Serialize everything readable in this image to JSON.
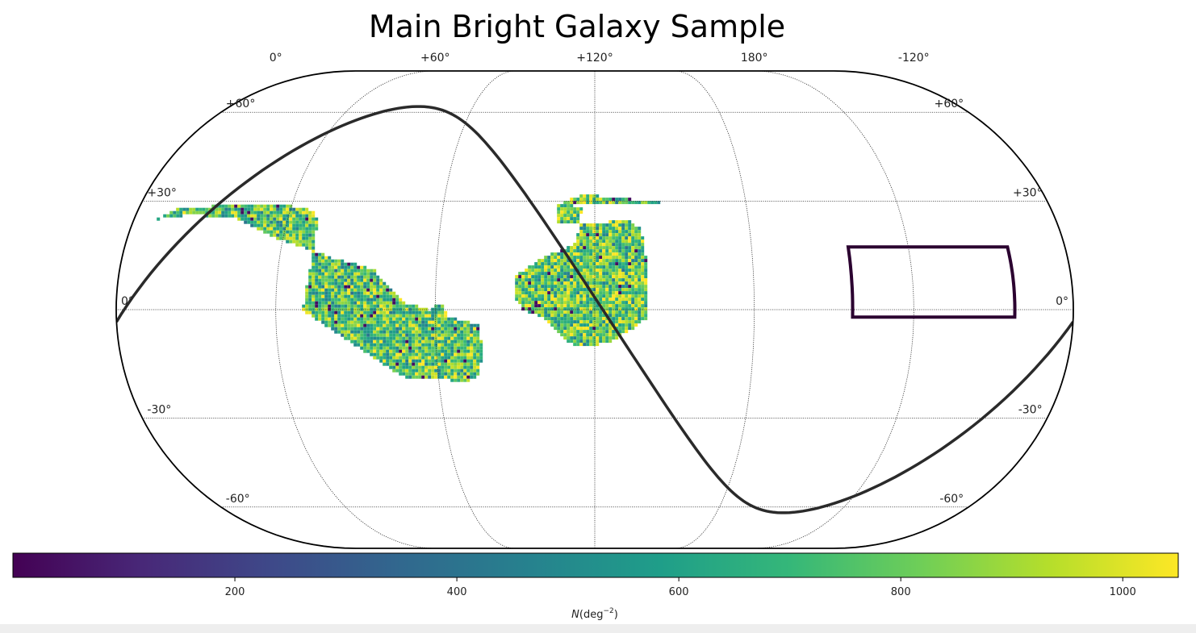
{
  "chart_data": {
    "type": "heatmap",
    "projection": "eckert-iv",
    "title": "Main Bright Galaxy Sample",
    "ra_axis": {
      "ticks": [
        {
          "ra": 120,
          "label": "0°"
        },
        {
          "ra": 60,
          "label": "+60°"
        },
        {
          "ra": 0,
          "label": "+120°"
        },
        {
          "ra": -60,
          "label": "180°"
        },
        {
          "ra": -120,
          "label": "-120°"
        }
      ]
    },
    "dec_axis": {
      "ticks": [
        {
          "dec": 60,
          "label": "+60°"
        },
        {
          "dec": 30,
          "label": "+30°"
        },
        {
          "dec": 0,
          "label": "0°"
        },
        {
          "dec": -30,
          "label": "-30°"
        },
        {
          "dec": -60,
          "label": "-60°"
        }
      ]
    },
    "grid": true,
    "colormap": "viridis",
    "colormap_stops": [
      "#440154",
      "#482878",
      "#3e4989",
      "#31688e",
      "#26828e",
      "#1f9e89",
      "#35b779",
      "#6ece58",
      "#b5de2b",
      "#fde725"
    ],
    "colorbar": {
      "range": [
        0,
        1050
      ],
      "ticks": [
        200,
        400,
        600,
        800,
        1000
      ],
      "label": "N(deg⁻²)",
      "label_var": "N",
      "label_unit": "(deg",
      "label_exp": "−2",
      "label_close": ")"
    },
    "footprints": [
      {
        "name": "",
        "outline": [
          [
            -61,
            27
          ],
          [
            -35,
            29
          ],
          [
            -7,
            29
          ],
          [
            15,
            29
          ],
          [
            15,
            24
          ],
          [
            -5,
            24
          ],
          [
            -12,
            25
          ],
          [
            -18,
            22
          ],
          [
            -20,
            12
          ],
          [
            -20,
            -2
          ],
          [
            -15,
            -5
          ],
          [
            -5,
            -9
          ],
          [
            5,
            -10
          ],
          [
            10,
            -9
          ],
          [
            15,
            -5
          ],
          [
            20,
            -2
          ],
          [
            27,
            0
          ],
          [
            30,
            3
          ],
          [
            30,
            9
          ],
          [
            20,
            14
          ],
          [
            7,
            18
          ],
          [
            5,
            28
          ],
          [
            8,
            28
          ],
          [
            8,
            29
          ],
          [
            15,
            29
          ],
          [
            5,
            32
          ]
        ],
        "density_mean": 780
      },
      {
        "name": "",
        "outline": [
          [
            174,
            23
          ],
          [
            165,
            28
          ],
          [
            140,
            29
          ],
          [
            125,
            29
          ],
          [
            115,
            28
          ],
          [
            110,
            27
          ],
          [
            108,
            24
          ],
          [
            108,
            10
          ],
          [
            110,
            0
          ],
          [
            100,
            -5
          ],
          [
            78,
            -16
          ],
          [
            72,
            -19
          ],
          [
            58,
            -19
          ],
          [
            50,
            -20
          ],
          [
            45,
            -18
          ],
          [
            42,
            -12
          ],
          [
            44,
            -4
          ],
          [
            55,
            -2
          ],
          [
            58,
            2
          ],
          [
            62,
            0
          ],
          [
            72,
            2
          ],
          [
            76,
            5
          ],
          [
            84,
            11
          ],
          [
            100,
            14
          ],
          [
            108,
            16
          ],
          [
            125,
            20
          ],
          [
            140,
            25
          ],
          [
            158,
            26
          ],
          [
            170,
            25
          ]
        ],
        "density_mean": 760
      }
    ],
    "highlight_box": {
      "ra": [
        -158,
        -97
      ],
      "dec": [
        -2,
        17
      ]
    },
    "boundary_curve": {
      "type": "line",
      "description_free": true
    }
  }
}
